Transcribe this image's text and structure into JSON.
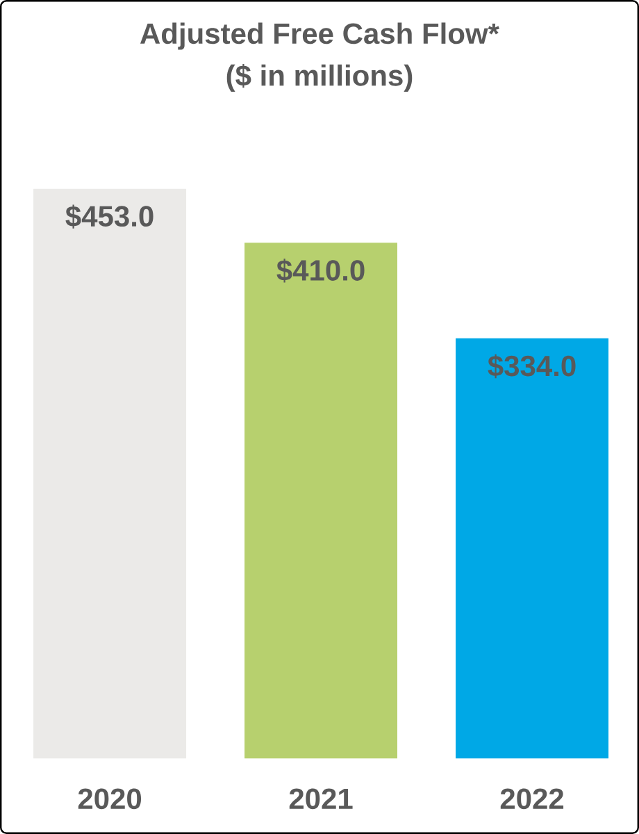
{
  "chart_data": {
    "type": "bar",
    "title": "Adjusted Free Cash Flow*",
    "subtitle": "($ in millions)",
    "categories": [
      "2020",
      "2021",
      "2022"
    ],
    "values": [
      453.0,
      410.0,
      334.0
    ],
    "value_labels": [
      "$453.0",
      "$410.0",
      "$334.0"
    ],
    "colors": [
      "#ebeae8",
      "#b7d06e",
      "#00a8e6"
    ],
    "tick_labels": "x"
  }
}
